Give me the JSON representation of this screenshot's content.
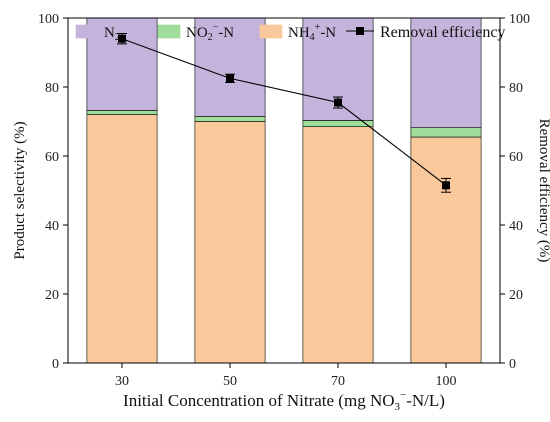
{
  "chart_data": {
    "type": "bar",
    "stacked": true,
    "categories": [
      "30",
      "50",
      "70",
      "100"
    ],
    "series": [
      {
        "name": "NH4+-N",
        "legend_main": "NH",
        "legend_sub": "4",
        "legend_sup": "+",
        "legend_tail": "-N",
        "color": "#f9c89b",
        "values": [
          72.0,
          70.0,
          68.5,
          65.5
        ]
      },
      {
        "name": "NO2--N",
        "legend_main": "NO",
        "legend_sub": "2",
        "legend_sup": "−",
        "legend_tail": "-N",
        "color": "#9edd9a",
        "values": [
          1.2,
          1.5,
          1.8,
          2.7
        ]
      },
      {
        "name": "N2",
        "legend_main": "N",
        "legend_sub": "2",
        "legend_sup": "",
        "legend_tail": "",
        "color": "#c4b4dc",
        "values": [
          26.8,
          28.5,
          29.7,
          31.8
        ]
      }
    ],
    "line_series": {
      "name": "Removal efficiency",
      "values": [
        94.0,
        82.5,
        75.5,
        51.5
      ],
      "errors": [
        1.5,
        1.2,
        1.6,
        2.0
      ],
      "color": "#000000"
    },
    "xlabel": {
      "main": "Initial Concentration of Nitrate (mg NO",
      "sub": "3",
      "sup": "−",
      "tail": "-N/L)"
    },
    "ylabel_left": "Product selectivity  (%)",
    "ylabel_right": "Removal efficiency  (%)",
    "ylim_left": [
      0,
      100
    ],
    "ylim_right": [
      0,
      100
    ],
    "yticks": [
      0,
      20,
      40,
      60,
      80,
      100
    ],
    "legend_position": "top",
    "grid": false
  }
}
